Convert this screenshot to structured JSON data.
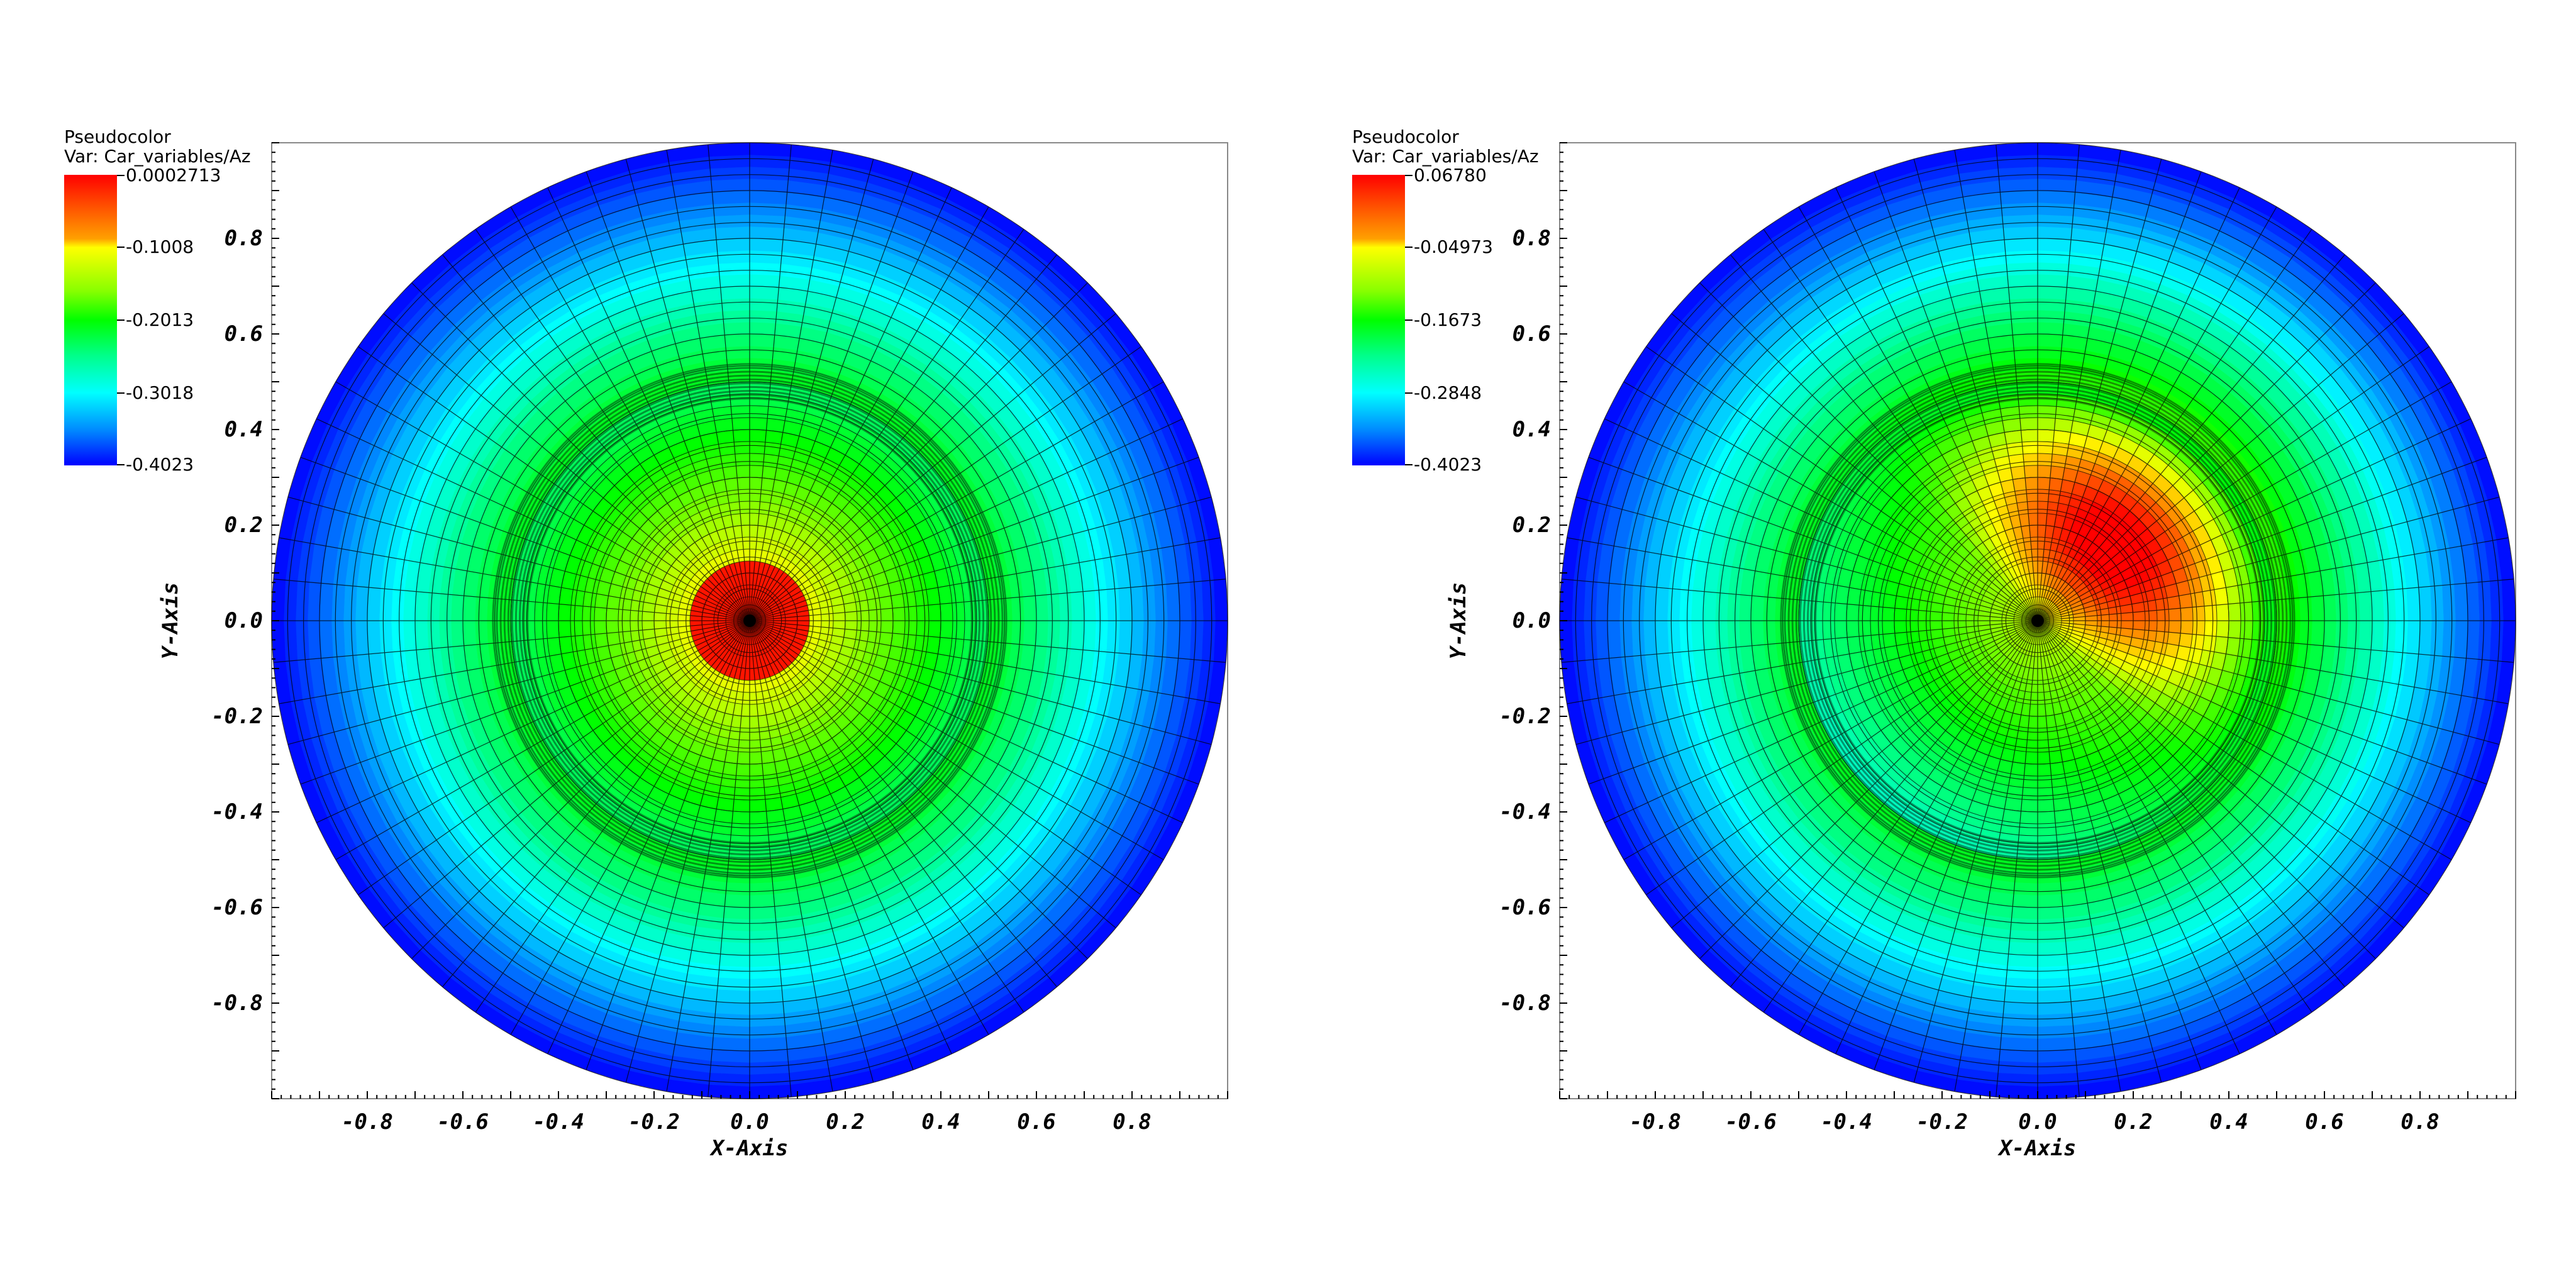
{
  "chart_data": [
    {
      "type": "heatmap",
      "plot_kind": "pseudocolor",
      "legend": {
        "title": "Pseudocolor",
        "var_label": "Var: Car_variables/Az",
        "max": "0.0002713",
        "labels": [
          "0.0002713",
          "-0.1008",
          "-0.2013",
          "-0.3018",
          "-0.4023"
        ],
        "min": "-0.4023",
        "placement": "top-left"
      },
      "colormap": [
        "#0000ff",
        "#00ffff",
        "#00ff00",
        "#ffff00",
        "#ff0000"
      ],
      "field": {
        "description_values": "radially symmetric; max at center, dark ring at r=0.5, min at r=1",
        "center_value": 0.0002713,
        "ring_radius": 0.5,
        "edge_value": -0.4023,
        "asymmetry": 0
      },
      "xlabel": "X-Axis",
      "ylabel": "Y-Axis",
      "xlim": [
        -1,
        1
      ],
      "ylim": [
        -1,
        1
      ],
      "x_ticks": [
        "-0.8",
        "-0.6",
        "-0.4",
        "-0.2",
        "0.0",
        "0.2",
        "0.4",
        "0.6",
        "0.8"
      ],
      "y_ticks": [
        "0.8",
        "0.6",
        "0.4",
        "0.2",
        "0.0",
        "-0.2",
        "-0.4",
        "-0.6",
        "-0.8"
      ],
      "grid": "polar mesh"
    },
    {
      "type": "heatmap",
      "plot_kind": "pseudocolor",
      "legend": {
        "title": "Pseudocolor",
        "var_label": "Var: Car_variables/Az",
        "max": "0.06780",
        "labels": [
          "0.06780",
          "-0.04973",
          "-0.1673",
          "-0.2848",
          "-0.4023"
        ],
        "min": "-0.4023",
        "placement": "top-left"
      },
      "colormap": [
        "#0000ff",
        "#00ffff",
        "#00ff00",
        "#ffff00",
        "#ff0000"
      ],
      "field": {
        "description_values": "max lobe in upper-right quadrant (~angle 45deg), dark ring at r=0.5, min at r=1",
        "center_value": 0.0002713,
        "ring_radius": 0.5,
        "edge_value": -0.4023,
        "asymmetry": 1
      },
      "xlabel": "X-Axis",
      "ylabel": "Y-Axis",
      "xlim": [
        -1,
        1
      ],
      "ylim": [
        -1,
        1
      ],
      "x_ticks": [
        "-0.8",
        "-0.6",
        "-0.4",
        "-0.2",
        "0.0",
        "0.2",
        "0.4",
        "0.6",
        "0.8"
      ],
      "y_ticks": [
        "0.8",
        "0.6",
        "0.4",
        "0.2",
        "0.0",
        "-0.2",
        "-0.4",
        "-0.6",
        "-0.8"
      ],
      "grid": "polar mesh"
    }
  ]
}
